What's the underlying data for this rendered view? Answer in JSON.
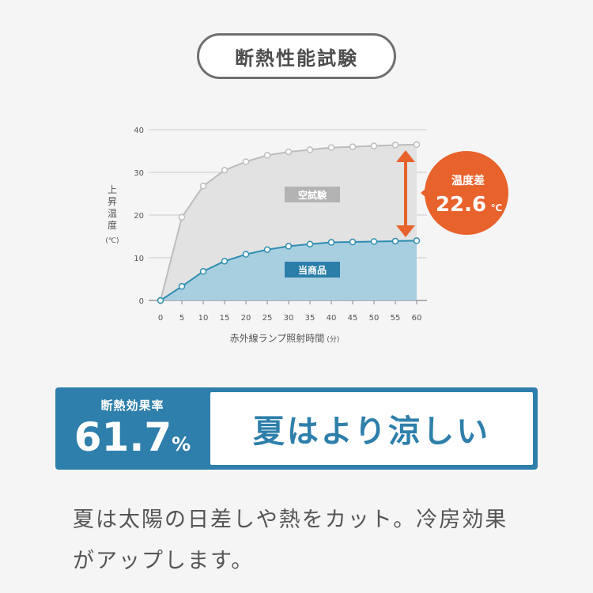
{
  "header": {
    "title": "断熱性能試験"
  },
  "chart_data": {
    "type": "line",
    "x": [
      0,
      5,
      10,
      15,
      20,
      25,
      30,
      35,
      40,
      45,
      50,
      55,
      60
    ],
    "xlabel": "赤外線ランプ照射時間",
    "xlabel_unit": "(分)",
    "ylabel": "上昇温度",
    "ylabel_unit": "(℃)",
    "ylim": [
      0,
      40
    ],
    "xlim": [
      0,
      60
    ],
    "yticks": [
      0,
      10,
      20,
      30,
      40
    ],
    "series": [
      {
        "name": "空試験",
        "values": [
          0,
          19.5,
          26.8,
          30.5,
          32.5,
          34.0,
          34.8,
          35.3,
          35.8,
          36.0,
          36.2,
          36.4,
          36.5
        ],
        "color": "#bdbdbd"
      },
      {
        "name": "当商品",
        "values": [
          0,
          3.3,
          6.8,
          9.2,
          10.8,
          11.9,
          12.7,
          13.2,
          13.6,
          13.7,
          13.8,
          13.9,
          14.0
        ],
        "color": "#2e8db0"
      }
    ],
    "annotation": {
      "label": "温度差",
      "value": "22.6",
      "unit": "℃",
      "color": "#e8622c"
    }
  },
  "banner": {
    "label": "断熱効果率",
    "value": "61.7",
    "unit": "%",
    "headline": "夏はより涼しい"
  },
  "description": {
    "line1": "夏は太陽の日差しや熱をカット。冷房効果",
    "line2": "がアップします。"
  }
}
